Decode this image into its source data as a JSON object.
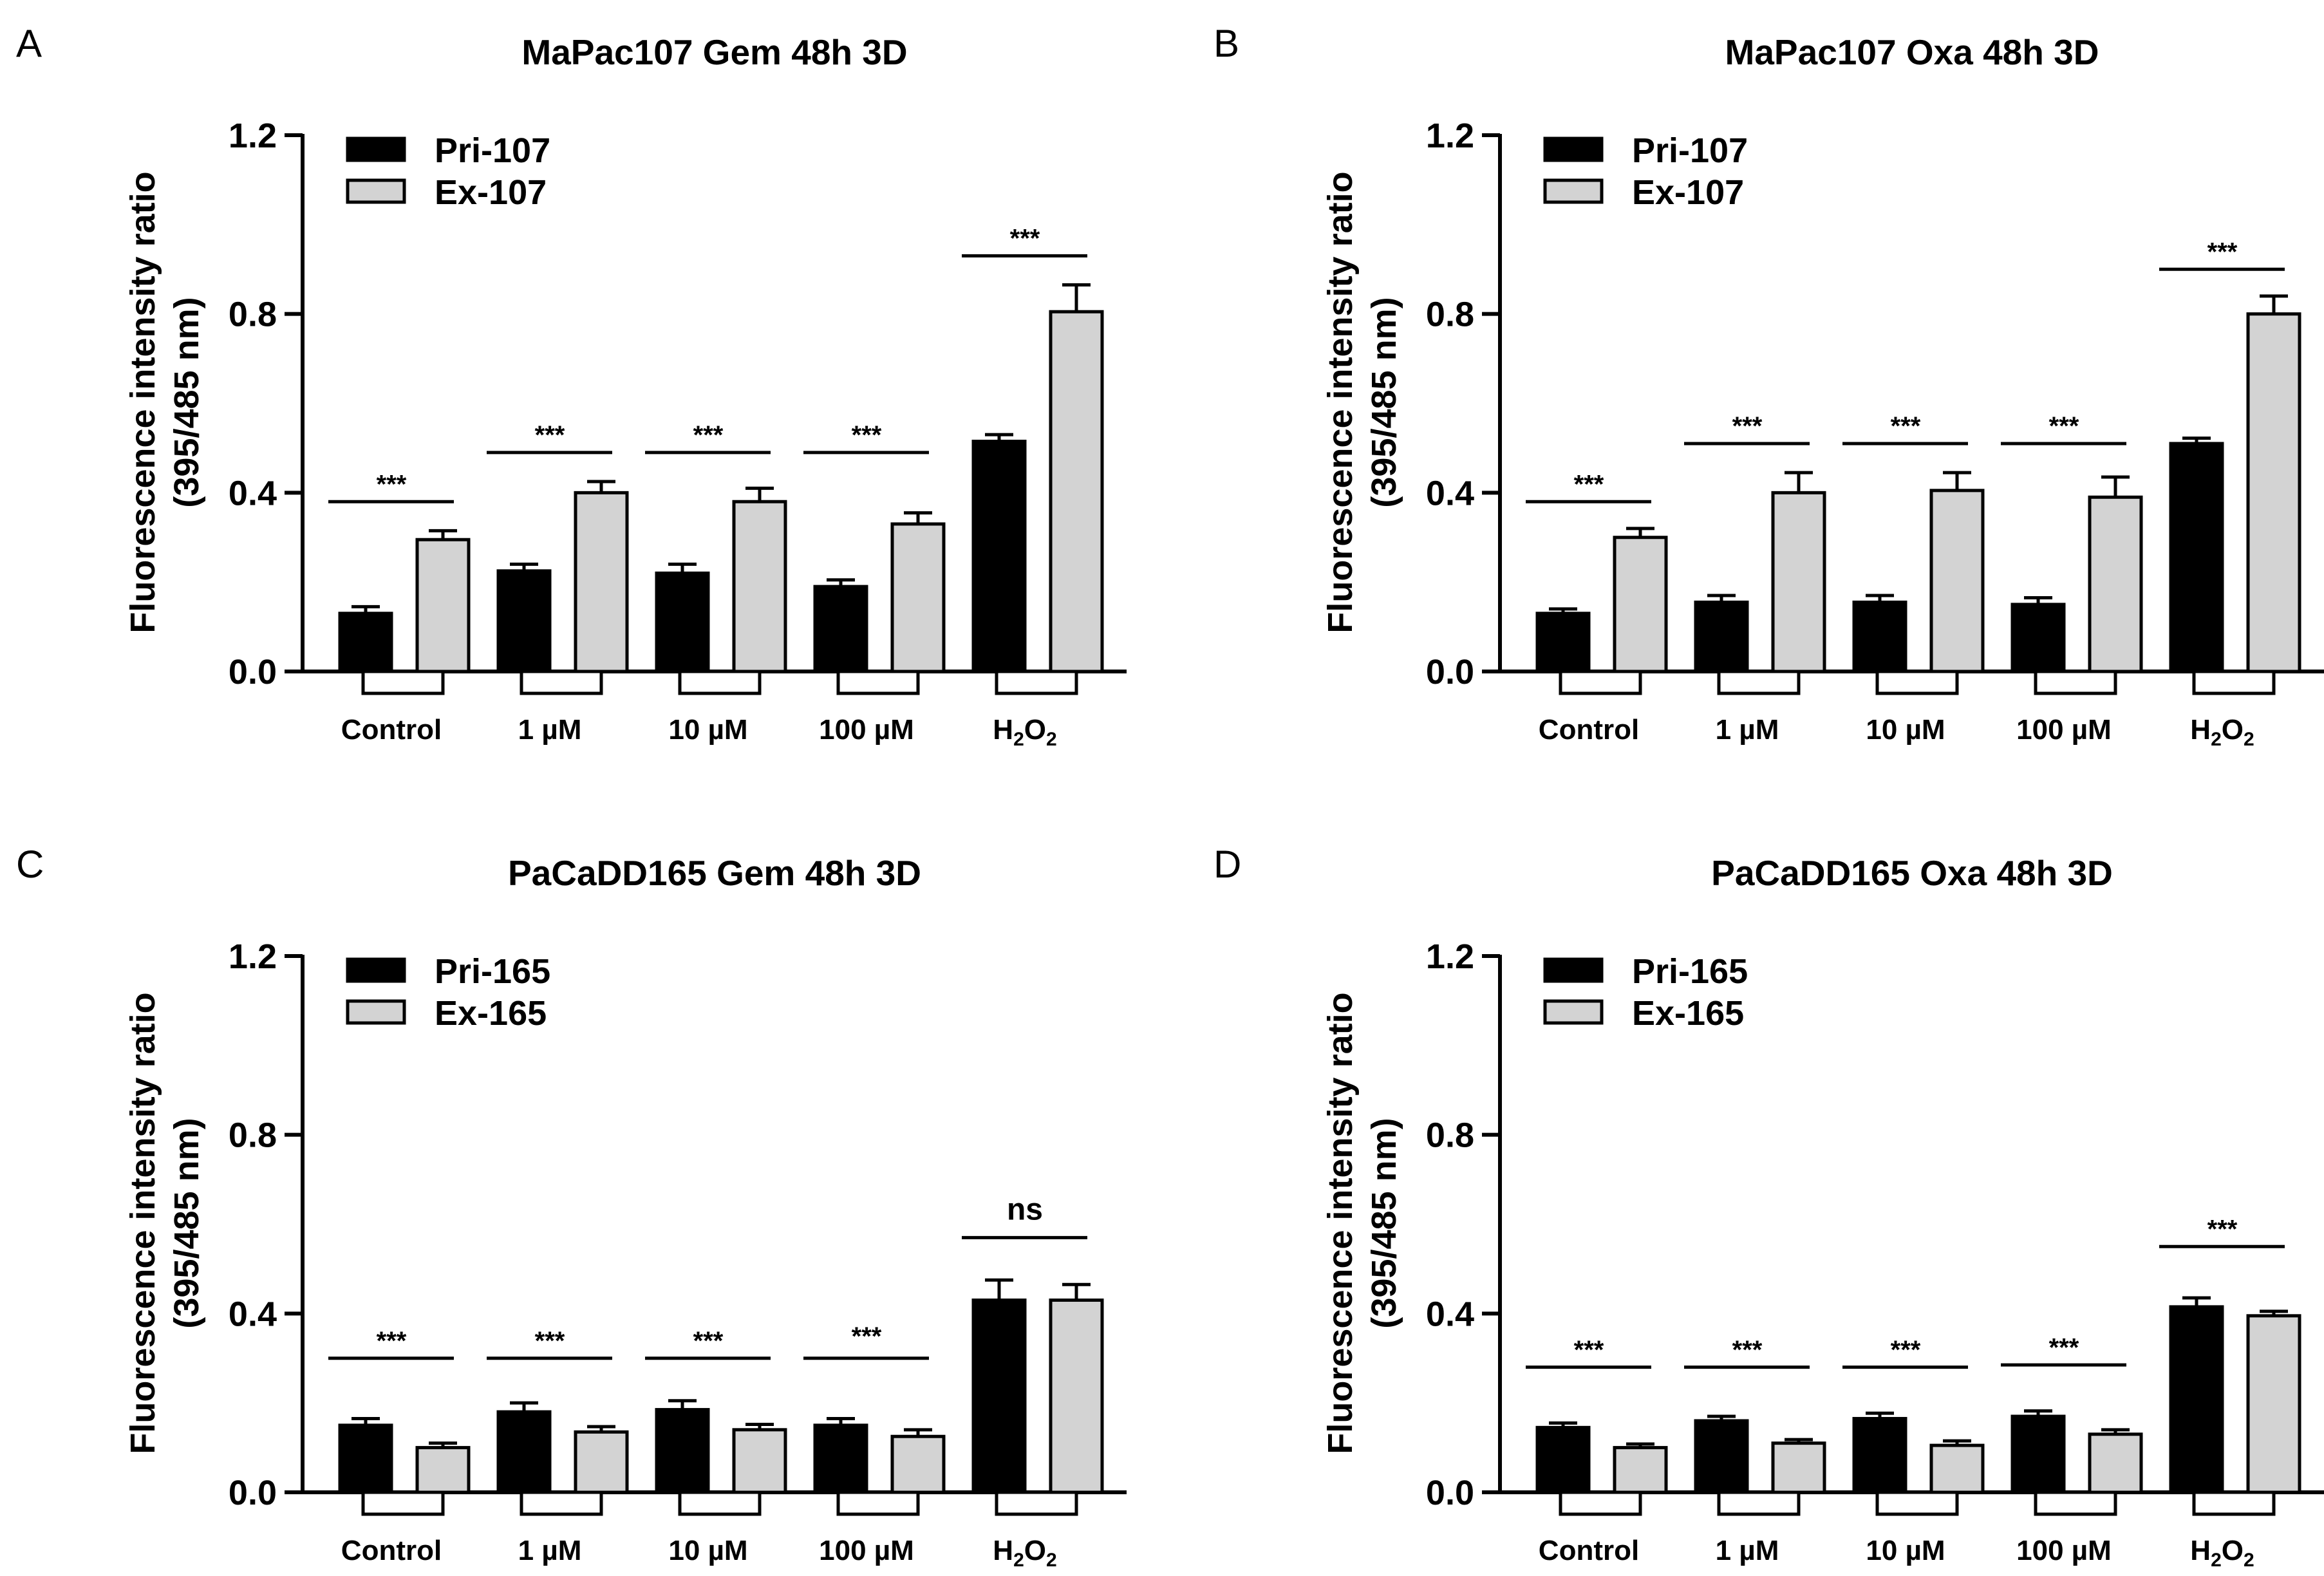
{
  "figure": {
    "type": "multi-panel bar chart"
  },
  "chart_data": [
    {
      "panel_label": "A",
      "type": "bar",
      "title": "MaPac107 Gem 48h 3D",
      "ylabel_line1": "Fluorescence intensity ratio",
      "ylabel_line2": "(395/485 nm)",
      "ylim": [
        0,
        1.2
      ],
      "yticks": [
        "0.0",
        "0.4",
        "0.8",
        "1.2"
      ],
      "categories": [
        "Control",
        "1 µM",
        "10 µM",
        "100 µM",
        "H2O2"
      ],
      "series": [
        {
          "name": "Pri-107",
          "color": "#000000",
          "values": [
            0.13,
            0.225,
            0.22,
            0.19,
            0.515
          ],
          "errors": [
            0.015,
            0.015,
            0.02,
            0.015,
            0.015
          ]
        },
        {
          "name": "Ex-107",
          "color": "#d3d3d3",
          "values": [
            0.295,
            0.4,
            0.38,
            0.33,
            0.805
          ],
          "errors": [
            0.02,
            0.025,
            0.03,
            0.025,
            0.06
          ]
        }
      ],
      "significance": [
        "***",
        "***",
        "***",
        "***",
        "***"
      ],
      "sig_line_y": [
        0.38,
        0.49,
        0.49,
        0.49,
        0.93
      ],
      "sig_text_y": [
        0.42,
        0.53,
        0.53,
        0.53,
        0.97
      ]
    },
    {
      "panel_label": "B",
      "type": "bar",
      "title": "MaPac107 Oxa 48h 3D",
      "ylabel_line1": "Fluorescence intensity ratio",
      "ylabel_line2": "(395/485 nm)",
      "ylim": [
        0,
        1.2
      ],
      "yticks": [
        "0.0",
        "0.4",
        "0.8",
        "1.2"
      ],
      "categories": [
        "Control",
        "1 µM",
        "10 µM",
        "100 µM",
        "H2O2"
      ],
      "series": [
        {
          "name": "Pri-107",
          "color": "#000000",
          "values": [
            0.13,
            0.155,
            0.155,
            0.15,
            0.51
          ],
          "errors": [
            0.01,
            0.015,
            0.015,
            0.015,
            0.012
          ]
        },
        {
          "name": "Ex-107",
          "color": "#d3d3d3",
          "values": [
            0.3,
            0.4,
            0.405,
            0.39,
            0.8
          ],
          "errors": [
            0.02,
            0.045,
            0.04,
            0.045,
            0.04
          ]
        }
      ],
      "significance": [
        "***",
        "***",
        "***",
        "***",
        "***"
      ],
      "sig_line_y": [
        0.38,
        0.51,
        0.51,
        0.51,
        0.9
      ],
      "sig_text_y": [
        0.42,
        0.55,
        0.55,
        0.55,
        0.94
      ]
    },
    {
      "panel_label": "C",
      "type": "bar",
      "title": "PaCaDD165 Gem 48h 3D",
      "ylabel_line1": "Fluorescence intensity ratio",
      "ylabel_line2": "(395/485 nm)",
      "ylim": [
        0,
        1.2
      ],
      "yticks": [
        "0.0",
        "0.4",
        "0.8",
        "1.2"
      ],
      "categories": [
        "Control",
        "1 µM",
        "10 µM",
        "100 µM",
        "H2O2"
      ],
      "series": [
        {
          "name": "Pri-165",
          "color": "#000000",
          "values": [
            0.15,
            0.18,
            0.185,
            0.15,
            0.43
          ],
          "errors": [
            0.015,
            0.02,
            0.02,
            0.015,
            0.045
          ]
        },
        {
          "name": "Ex-165",
          "color": "#d3d3d3",
          "values": [
            0.1,
            0.135,
            0.14,
            0.125,
            0.43
          ],
          "errors": [
            0.01,
            0.012,
            0.012,
            0.015,
            0.035
          ]
        }
      ],
      "significance": [
        "***",
        "***",
        "***",
        "***",
        "ns"
      ],
      "sig_line_y": [
        0.3,
        0.3,
        0.3,
        0.3,
        0.57
      ],
      "sig_text_y": [
        0.34,
        0.34,
        0.34,
        0.35,
        0.63
      ]
    },
    {
      "panel_label": "D",
      "type": "bar",
      "title": "PaCaDD165 Oxa 48h 3D",
      "ylabel_line1": "Fluorescence intensity ratio",
      "ylabel_line2": "(395/485 nm)",
      "ylim": [
        0,
        1.2
      ],
      "yticks": [
        "0.0",
        "0.4",
        "0.8",
        "1.2"
      ],
      "categories": [
        "Control",
        "1 µM",
        "10 µM",
        "100 µM",
        "H2O2"
      ],
      "series": [
        {
          "name": "Pri-165",
          "color": "#000000",
          "values": [
            0.145,
            0.16,
            0.165,
            0.17,
            0.415
          ],
          "errors": [
            0.01,
            0.01,
            0.012,
            0.012,
            0.02
          ]
        },
        {
          "name": "Ex-165",
          "color": "#d3d3d3",
          "values": [
            0.1,
            0.11,
            0.105,
            0.13,
            0.395
          ],
          "errors": [
            0.008,
            0.008,
            0.01,
            0.01,
            0.01
          ]
        }
      ],
      "significance": [
        "***",
        "***",
        "***",
        "***",
        "***"
      ],
      "sig_line_y": [
        0.28,
        0.28,
        0.28,
        0.285,
        0.55
      ],
      "sig_text_y": [
        0.32,
        0.32,
        0.32,
        0.325,
        0.59
      ]
    }
  ]
}
